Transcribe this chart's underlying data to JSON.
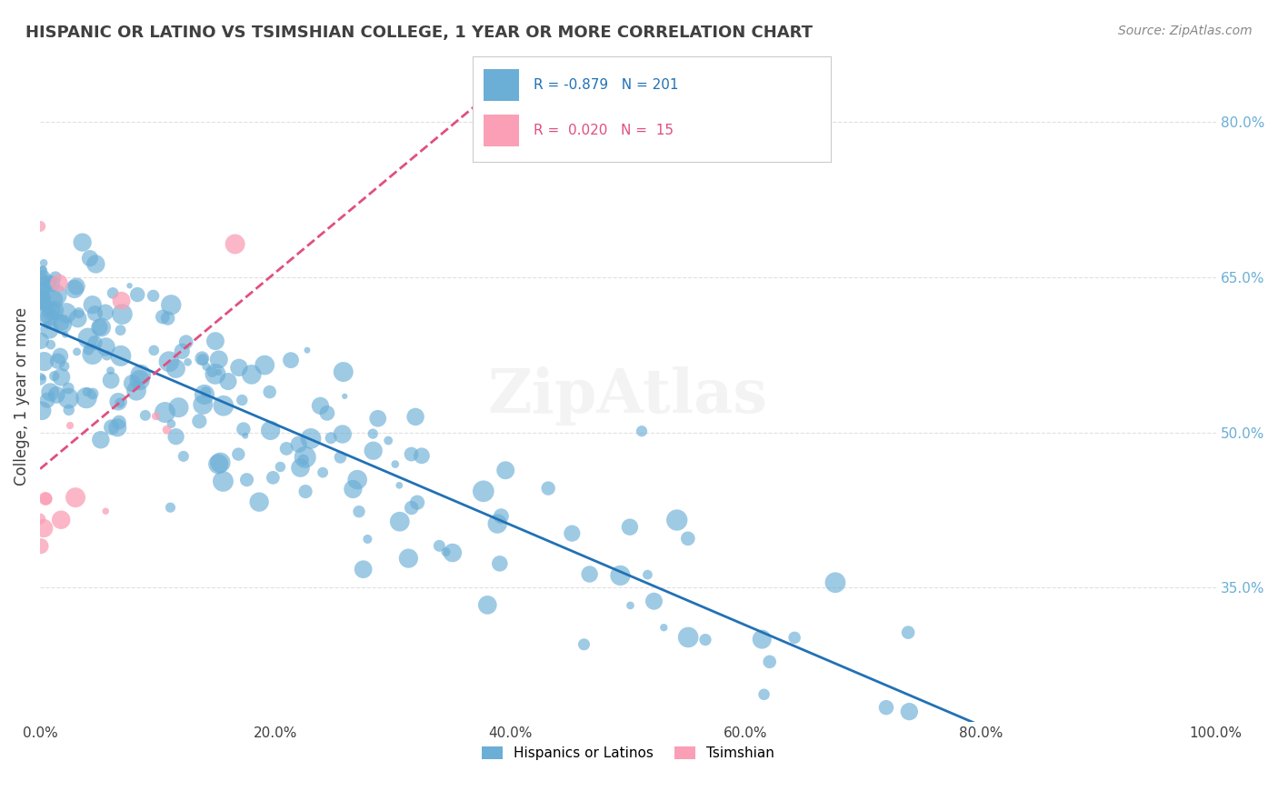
{
  "title": "HISPANIC OR LATINO VS TSIMSHIAN COLLEGE, 1 YEAR OR MORE CORRELATION CHART",
  "source": "Source: ZipAtlas.com",
  "xlabel": "",
  "ylabel": "College, 1 year or more",
  "xlim": [
    0.0,
    1.0
  ],
  "ylim": [
    0.22,
    0.85
  ],
  "xticks": [
    0.0,
    0.2,
    0.4,
    0.6,
    0.8,
    1.0
  ],
  "xtick_labels": [
    "0.0%",
    "20.0%",
    "40.0%",
    "60.0%",
    "80.0%",
    "100.0%"
  ],
  "ytick_positions": [
    0.35,
    0.5,
    0.65,
    0.8
  ],
  "ytick_labels": [
    "35.0%",
    "50.0%",
    "65.0%",
    "80.0%"
  ],
  "blue_color": "#6baed6",
  "pink_color": "#fa9fb5",
  "blue_line_color": "#2171b5",
  "pink_line_color": "#e05080",
  "blue_R": -0.879,
  "blue_N": 201,
  "pink_R": 0.02,
  "pink_N": 15,
  "legend_label_blue": "Hispanics or Latinos",
  "legend_label_pink": "Tsimshian",
  "watermark": "ZipAtlas",
  "background_color": "#ffffff",
  "grid_color": "#dddddd",
  "title_color": "#404040",
  "axis_label_color": "#404040",
  "tick_label_color": "#404040",
  "right_ytick_color": "#6baed6",
  "right_ytick_positions": [
    0.35,
    0.5,
    0.65,
    0.8
  ],
  "right_ytick_labels": [
    "35.0%",
    "50.0%",
    "65.0%",
    "80.0%"
  ]
}
